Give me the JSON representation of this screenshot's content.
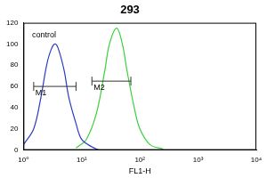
{
  "chart_data": {
    "type": "line",
    "title": "293",
    "x_label": "FL1-H",
    "log": "x",
    "grid": false,
    "xlim": [
      1,
      10000
    ],
    "xticks": [
      {
        "value": 1,
        "label": "10⁰"
      },
      {
        "value": 10,
        "label": "10¹"
      },
      {
        "value": 100,
        "label": "10²"
      },
      {
        "value": 1000,
        "label": "10³"
      },
      {
        "value": 10000,
        "label": "10⁴"
      }
    ],
    "ylim": [
      0,
      120
    ],
    "yticks": [
      0,
      20,
      40,
      60,
      80,
      100,
      120
    ],
    "series": [
      {
        "color": "#2a3cc0",
        "x": [
          1,
          1.5,
          2,
          2.5,
          3,
          3.5,
          4,
          5,
          6,
          8,
          10,
          15,
          20
        ],
        "values": [
          5,
          20,
          50,
          80,
          95,
          100,
          95,
          75,
          50,
          25,
          10,
          3,
          0
        ]
      },
      {
        "color": "#3ccf3c",
        "x": [
          8,
          12,
          18,
          25,
          30,
          40,
          50,
          60,
          80,
          100,
          150,
          250
        ],
        "values": [
          2,
          10,
          35,
          75,
          100,
          115,
          100,
          75,
          40,
          20,
          5,
          1
        ]
      }
    ],
    "annotations": [
      {
        "text": "control",
        "x": 1.4,
        "y": 108
      },
      {
        "text": "M1",
        "x": [
          1.5,
          8
        ],
        "y": 60
      },
      {
        "text": "M2",
        "x": [
          15,
          70
        ],
        "y": 65
      }
    ]
  }
}
